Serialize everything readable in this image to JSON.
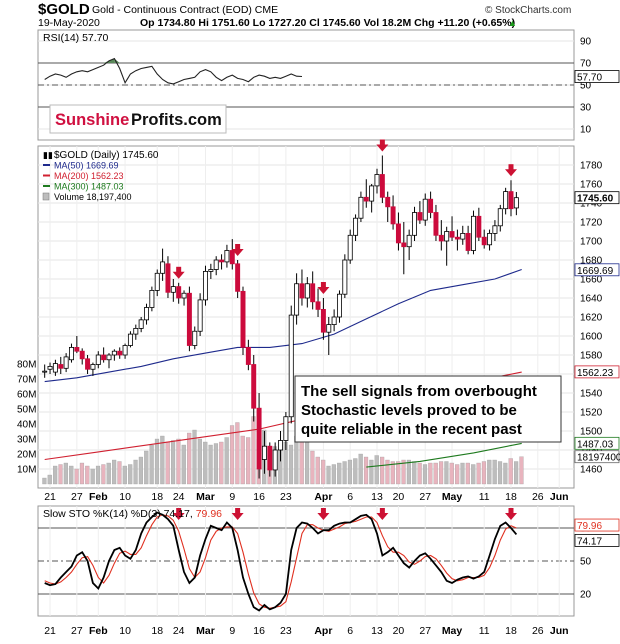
{
  "header": {
    "symbol": "$GOLD",
    "name": "Gold - Continuous Contract (EOD) CME",
    "watermark": "© StockCharts.com",
    "date": "19-May-2020",
    "ohlc_line": "Op 1734.80  Hi 1751.60  Lo 1727.20  Cl 1745.60  Vol 18.2M  Chg +11.20 (+0.65%)",
    "ohlc_arrow": "▲"
  },
  "logo": {
    "part1": "Sunshine",
    "part2": "Profits.com"
  },
  "annotation": {
    "lines": [
      "The sell signals from overbought",
      "Stochastic levels proved to be",
      "quite reliable in the recent past"
    ]
  },
  "colors": {
    "up": "#ffffff",
    "down": "#cc0a3c",
    "ma50": "#1e2a8c",
    "ma200": "#d02030",
    "ma300": "#1e7a1e",
    "volume_up": "#bdbdbd",
    "volume_down": "#e8b4be",
    "rsi": "#222222",
    "rsi_fill": "#5a8a5a",
    "sto_k": "#000000",
    "sto_d": "#e03020",
    "arrow": "#cc1133",
    "grid": "#e6e6e6"
  },
  "chart_data": [
    {
      "type": "line",
      "panel": "RSI",
      "legend": "RSI(14) 57.70",
      "last_value_label": "57.70",
      "ylim": [
        0,
        100
      ],
      "y_ticks": [
        "90",
        "70",
        "50",
        "30",
        "10"
      ],
      "reference_lines": [
        70,
        50,
        30
      ],
      "values": [
        55,
        58,
        60,
        59,
        57,
        60,
        62,
        63,
        62,
        64,
        66,
        68,
        72,
        74,
        65,
        52,
        60,
        63,
        65,
        66,
        67,
        60,
        55,
        52,
        51,
        53,
        55,
        56,
        57,
        62,
        64,
        62,
        57,
        54,
        57,
        59,
        56,
        55,
        53,
        57,
        59,
        58,
        56,
        57,
        56,
        58,
        60,
        58,
        57.7
      ]
    },
    {
      "type": "candlestick",
      "panel": "price",
      "legend": [
        {
          "key": "price",
          "text": "$GOLD (Daily) 1745.60",
          "marker": "▮▮"
        },
        {
          "key": "ma50",
          "text": "MA(50) 1669.69"
        },
        {
          "key": "ma200",
          "text": "MA(200) 1562.23"
        },
        {
          "key": "ma300",
          "text": "MA(300) 1487.03"
        },
        {
          "key": "volume",
          "text": "Volume 18,197,400"
        }
      ],
      "ylim": [
        1440,
        1800
      ],
      "y_ticks": [
        "1780",
        "1760",
        "1740",
        "1720",
        "1700",
        "1680",
        "1660",
        "1640",
        "1620",
        "1600",
        "1580",
        "1560",
        "1540",
        "1520",
        "1500",
        "1480",
        "1460"
      ],
      "last_price_label": "1745.60",
      "ma_labels": {
        "ma50": "1669.69",
        "ma200": "1562.23",
        "ma300": "1487.03"
      },
      "volume_last_label": "18197400",
      "volume_ticks": [
        "80M",
        "70M",
        "60M",
        "50M",
        "40M",
        "30M",
        "20M",
        "10M"
      ],
      "volume_max": 80,
      "x_labels": [
        {
          "label": "21",
          "bar": 1
        },
        {
          "label": "27",
          "bar": 6
        },
        {
          "label": "Feb",
          "bar": 10
        },
        {
          "label": "10",
          "bar": 15
        },
        {
          "label": "18",
          "bar": 21
        },
        {
          "label": "24",
          "bar": 25
        },
        {
          "label": "Mar",
          "bar": 30
        },
        {
          "label": "9",
          "bar": 35
        },
        {
          "label": "16",
          "bar": 40
        },
        {
          "label": "23",
          "bar": 45
        },
        {
          "label": "Apr",
          "bar": 52
        },
        {
          "label": "6",
          "bar": 57
        },
        {
          "label": "13",
          "bar": 62
        },
        {
          "label": "20",
          "bar": 66
        },
        {
          "label": "27",
          "bar": 71
        },
        {
          "label": "May",
          "bar": 76
        },
        {
          "label": "11",
          "bar": 82
        },
        {
          "label": "18",
          "bar": 87
        },
        {
          "label": "26",
          "bar": 92
        },
        {
          "label": "Jun",
          "bar": 96
        }
      ],
      "candles": [
        [
          1562,
          1570,
          1556,
          1563
        ],
        [
          1565,
          1572,
          1560,
          1568
        ],
        [
          1562,
          1575,
          1558,
          1571
        ],
        [
          1570,
          1578,
          1560,
          1566
        ],
        [
          1566,
          1582,
          1562,
          1578
        ],
        [
          1575,
          1592,
          1572,
          1588
        ],
        [
          1588,
          1600,
          1582,
          1584
        ],
        [
          1584,
          1587,
          1570,
          1576
        ],
        [
          1576,
          1580,
          1560,
          1565
        ],
        [
          1565,
          1572,
          1558,
          1570
        ],
        [
          1570,
          1584,
          1566,
          1580
        ],
        [
          1580,
          1588,
          1572,
          1575
        ],
        [
          1575,
          1582,
          1566,
          1580
        ],
        [
          1580,
          1586,
          1574,
          1584
        ],
        [
          1584,
          1588,
          1576,
          1580
        ],
        [
          1580,
          1592,
          1576,
          1590
        ],
        [
          1590,
          1605,
          1588,
          1602
        ],
        [
          1602,
          1612,
          1596,
          1608
        ],
        [
          1608,
          1620,
          1604,
          1617
        ],
        [
          1617,
          1634,
          1612,
          1630
        ],
        [
          1630,
          1652,
          1626,
          1648
        ],
        [
          1648,
          1670,
          1642,
          1666
        ],
        [
          1666,
          1692,
          1658,
          1678
        ],
        [
          1676,
          1684,
          1640,
          1646
        ],
        [
          1646,
          1660,
          1636,
          1652
        ],
        [
          1652,
          1656,
          1634,
          1640
        ],
        [
          1640,
          1648,
          1632,
          1645
        ],
        [
          1645,
          1652,
          1584,
          1590
        ],
        [
          1590,
          1610,
          1586,
          1605
        ],
        [
          1605,
          1645,
          1600,
          1638
        ],
        [
          1638,
          1674,
          1632,
          1668
        ],
        [
          1668,
          1676,
          1660,
          1670
        ],
        [
          1670,
          1684,
          1664,
          1680
        ],
        [
          1680,
          1686,
          1670,
          1678
        ],
        [
          1678,
          1696,
          1672,
          1690
        ],
        [
          1690,
          1702,
          1670,
          1676
        ],
        [
          1676,
          1680,
          1640,
          1647
        ],
        [
          1647,
          1652,
          1580,
          1588
        ],
        [
          1588,
          1596,
          1564,
          1570
        ],
        [
          1570,
          1580,
          1510,
          1524
        ],
        [
          1524,
          1540,
          1450,
          1460
        ],
        [
          1470,
          1500,
          1455,
          1484
        ],
        [
          1484,
          1488,
          1452,
          1459
        ],
        [
          1459,
          1488,
          1452,
          1480
        ],
        [
          1480,
          1500,
          1468,
          1490
        ],
        [
          1490,
          1520,
          1480,
          1515
        ],
        [
          1515,
          1632,
          1508,
          1622
        ],
        [
          1622,
          1666,
          1612,
          1655
        ],
        [
          1655,
          1670,
          1632,
          1640
        ],
        [
          1640,
          1662,
          1630,
          1655
        ],
        [
          1655,
          1668,
          1628,
          1636
        ],
        [
          1636,
          1650,
          1620,
          1628
        ],
        [
          1628,
          1640,
          1596,
          1604
        ],
        [
          1604,
          1620,
          1580,
          1612
        ],
        [
          1612,
          1628,
          1605,
          1620
        ],
        [
          1620,
          1648,
          1614,
          1644
        ],
        [
          1644,
          1686,
          1640,
          1680
        ],
        [
          1680,
          1712,
          1676,
          1706
        ],
        [
          1706,
          1728,
          1700,
          1724
        ],
        [
          1724,
          1752,
          1720,
          1746
        ],
        [
          1746,
          1765,
          1735,
          1742
        ],
        [
          1742,
          1760,
          1730,
          1758
        ],
        [
          1758,
          1776,
          1750,
          1770
        ],
        [
          1770,
          1790,
          1740,
          1746
        ],
        [
          1746,
          1752,
          1720,
          1736
        ],
        [
          1736,
          1748,
          1712,
          1718
        ],
        [
          1718,
          1730,
          1690,
          1698
        ],
        [
          1698,
          1720,
          1665,
          1694
        ],
        [
          1694,
          1712,
          1680,
          1706
        ],
        [
          1706,
          1736,
          1700,
          1730
        ],
        [
          1730,
          1742,
          1718,
          1722
        ],
        [
          1722,
          1750,
          1716,
          1744
        ],
        [
          1744,
          1752,
          1724,
          1730
        ],
        [
          1730,
          1738,
          1700,
          1706
        ],
        [
          1706,
          1722,
          1690,
          1700
        ],
        [
          1700,
          1715,
          1674,
          1710
        ],
        [
          1710,
          1726,
          1700,
          1704
        ],
        [
          1704,
          1712,
          1690,
          1702
        ],
        [
          1702,
          1716,
          1696,
          1708
        ],
        [
          1708,
          1716,
          1686,
          1690
        ],
        [
          1690,
          1732,
          1686,
          1726
        ],
        [
          1726,
          1735,
          1700,
          1704
        ],
        [
          1704,
          1712,
          1692,
          1696
        ],
        [
          1696,
          1712,
          1690,
          1708
        ],
        [
          1708,
          1722,
          1700,
          1716
        ],
        [
          1716,
          1738,
          1710,
          1734
        ],
        [
          1734,
          1756,
          1728,
          1752
        ],
        [
          1752,
          1764,
          1726,
          1734
        ],
        [
          1734.8,
          1751.6,
          1727.2,
          1745.6
        ]
      ],
      "ma50": [
        [
          0,
          1552
        ],
        [
          6,
          1556
        ],
        [
          12,
          1562
        ],
        [
          18,
          1568
        ],
        [
          24,
          1576
        ],
        [
          30,
          1582
        ],
        [
          36,
          1588
        ],
        [
          42,
          1588
        ],
        [
          48,
          1592
        ],
        [
          54,
          1602
        ],
        [
          60,
          1618
        ],
        [
          66,
          1634
        ],
        [
          72,
          1648
        ],
        [
          78,
          1654
        ],
        [
          84,
          1660
        ],
        [
          89,
          1670
        ]
      ],
      "ma200": [
        [
          0,
          1470
        ],
        [
          10,
          1478
        ],
        [
          20,
          1486
        ],
        [
          30,
          1494
        ],
        [
          40,
          1502
        ],
        [
          50,
          1515
        ],
        [
          60,
          1530
        ],
        [
          70,
          1542
        ],
        [
          80,
          1552
        ],
        [
          89,
          1562
        ]
      ],
      "ma300": [
        [
          60,
          1462
        ],
        [
          70,
          1468
        ],
        [
          80,
          1477
        ],
        [
          89,
          1487
        ]
      ],
      "volume_millions": [
        4,
        6,
        12,
        13,
        14,
        12,
        10,
        14,
        12,
        10,
        12,
        13,
        14,
        16,
        15,
        12,
        13,
        16,
        18,
        22,
        26,
        30,
        32,
        28,
        29,
        30,
        26,
        34,
        36,
        30,
        28,
        26,
        27,
        28,
        31,
        39,
        41,
        32,
        31,
        45,
        30,
        36,
        22,
        25,
        24,
        28,
        26,
        32,
        28,
        30,
        22,
        18,
        16,
        12,
        13,
        14,
        15,
        16,
        17,
        20,
        18,
        16,
        19,
        18,
        16,
        15,
        15,
        16,
        16,
        15,
        14,
        13,
        14,
        14,
        15,
        15,
        14,
        13,
        14,
        14,
        13,
        14,
        15,
        16,
        16,
        15,
        14,
        17,
        15,
        18.2
      ],
      "sell_signal_bars": [
        25,
        36,
        52,
        63,
        87
      ]
    },
    {
      "type": "line",
      "panel": "stochastic",
      "legend_parts": {
        "prefix": "Slow STO %K(14) %D(3) ",
        "k": "74.17",
        "sep": ", ",
        "d": "79.96"
      },
      "k_label": "74.17",
      "d_label": "79.96",
      "ylim": [
        0,
        100
      ],
      "y_ticks": [
        "80",
        "50",
        "20"
      ],
      "reference_lines": [
        80,
        50,
        20
      ],
      "k": [
        30,
        28,
        29,
        35,
        40,
        45,
        55,
        58,
        50,
        30,
        25,
        35,
        50,
        60,
        62,
        55,
        52,
        60,
        75,
        85,
        90,
        94,
        92,
        88,
        82,
        60,
        40,
        30,
        35,
        55,
        70,
        82,
        80,
        78,
        85,
        80,
        60,
        35,
        20,
        8,
        5,
        10,
        6,
        8,
        12,
        20,
        60,
        80,
        85,
        84,
        80,
        75,
        78,
        78,
        82,
        84,
        85,
        85,
        88,
        91,
        92,
        88,
        75,
        55,
        58,
        62,
        55,
        48,
        44,
        50,
        55,
        57,
        52,
        46,
        40,
        32,
        30,
        33,
        35,
        36,
        34,
        36,
        40,
        55,
        70,
        82,
        85,
        80,
        74.17
      ],
      "d": [
        32,
        30,
        29,
        31,
        35,
        40,
        47,
        53,
        54,
        46,
        35,
        30,
        37,
        48,
        57,
        59,
        56,
        56,
        62,
        73,
        83,
        90,
        92,
        91,
        87,
        77,
        61,
        43,
        35,
        40,
        53,
        69,
        77,
        80,
        81,
        81,
        75,
        58,
        38,
        21,
        11,
        8,
        7,
        8,
        9,
        13,
        31,
        53,
        75,
        83,
        83,
        80,
        78,
        77,
        79,
        81,
        84,
        85,
        86,
        88,
        90,
        90,
        85,
        73,
        63,
        58,
        58,
        55,
        49,
        47,
        50,
        54,
        55,
        52,
        46,
        39,
        34,
        32,
        33,
        35,
        35,
        35,
        37,
        44,
        55,
        69,
        79,
        82,
        79.96
      ]
    }
  ]
}
